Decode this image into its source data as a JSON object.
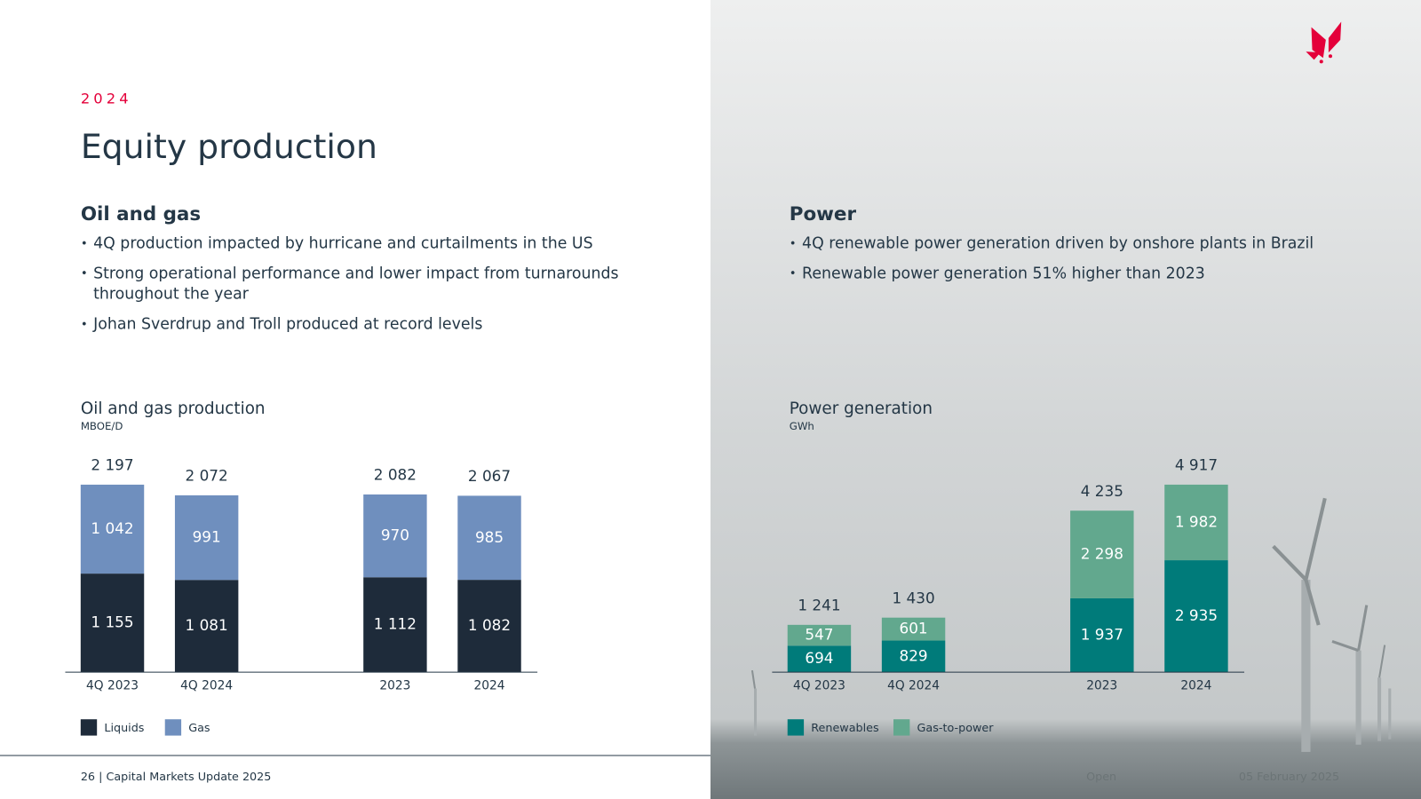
{
  "header": {
    "year": "2024",
    "title": "Equity production"
  },
  "sections": [
    {
      "heading": "Oil and gas",
      "bullets": [
        "4Q production impacted by hurricane and curtailments in the US",
        "Strong operational performance and lower impact from turnarounds throughout the year",
        "Johan Sverdrup and Troll produced at record levels"
      ]
    },
    {
      "heading": "Power",
      "bullets": [
        "4Q renewable power generation driven by onshore plants in Brazil",
        "Renewable power generation 51% higher than 2023"
      ]
    }
  ],
  "chart_data": [
    {
      "type": "bar",
      "stacked": true,
      "title": "Oil and gas production",
      "subtitle": "MBOE/D",
      "categories": [
        "4Q 2023",
        "4Q 2024",
        "2023",
        "2024"
      ],
      "series": [
        {
          "name": "Liquids",
          "color": "#1e2b3a",
          "values": [
            1155,
            1081,
            1112,
            1082
          ],
          "value_labels": [
            "1 155",
            "1 081",
            "1 112",
            "1 082"
          ]
        },
        {
          "name": "Gas",
          "color": "#6f8fbe",
          "values": [
            1042,
            991,
            970,
            985
          ],
          "value_labels": [
            "1 042",
            "991",
            "970",
            "985"
          ]
        }
      ],
      "totals": [
        2197,
        2072,
        2082,
        2067
      ],
      "total_labels": [
        "2 197",
        "2 072",
        "2 082",
        "2 067"
      ]
    },
    {
      "type": "bar",
      "stacked": true,
      "title": "Power generation",
      "subtitle": "GWh",
      "categories": [
        "4Q 2023",
        "4Q 2024",
        "2023",
        "2024"
      ],
      "series": [
        {
          "name": "Renewables",
          "color": "#007b7a",
          "values": [
            694,
            829,
            1937,
            2935
          ],
          "value_labels": [
            "694",
            "829",
            "1 937",
            "2 935"
          ]
        },
        {
          "name": "Gas-to-power",
          "color": "#62a88e",
          "values": [
            547,
            601,
            2298,
            1982
          ],
          "value_labels": [
            "547",
            "601",
            "2 298",
            "1 982"
          ]
        }
      ],
      "totals": [
        1241,
        1430,
        4235,
        4917
      ],
      "total_labels": [
        "1 241",
        "1 430",
        "4 235",
        "4 917"
      ]
    }
  ],
  "footer": {
    "text": "26  |  Capital Markets Update 2025",
    "classification": "Open",
    "date": "05 February 2025"
  }
}
